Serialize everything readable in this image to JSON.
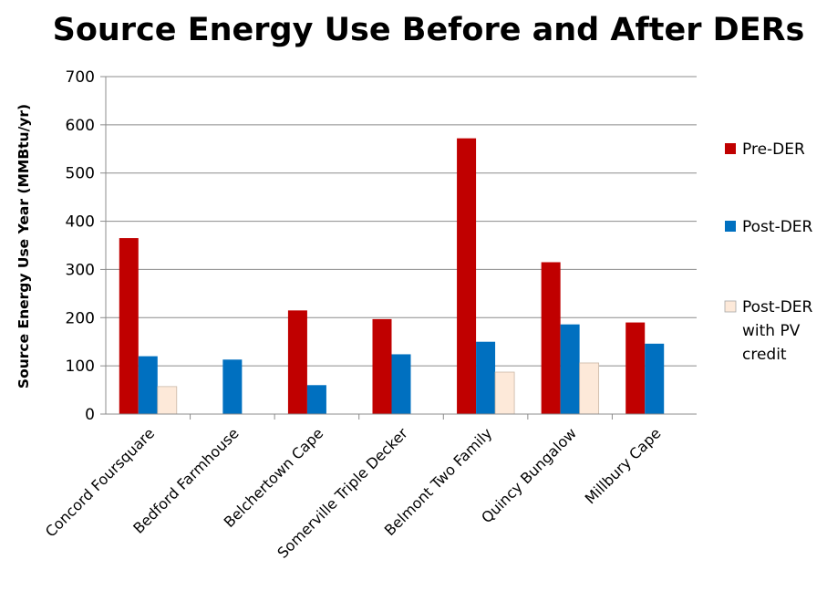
{
  "chart_data": {
    "type": "bar",
    "title": "Source Energy Use Before and After DERs",
    "xlabel": "",
    "ylabel": "Source Energy Use Year (MMBtu/yr)",
    "ylim": [
      0,
      700
    ],
    "yticks": [
      0,
      100,
      200,
      300,
      400,
      500,
      600,
      700
    ],
    "grid": true,
    "legend_position": "right",
    "categories": [
      "Concord Foursquare",
      "Bedford Farmhouse",
      "Belchertown Cape",
      "Somerville Triple Decker",
      "Belmont Two Family",
      "Quincy Bungalow",
      "Millbury Cape"
    ],
    "series": [
      {
        "name": "Pre-DER",
        "legend_lines": [
          "Pre-DER"
        ],
        "color": "#c00000",
        "values": [
          365,
          null,
          215,
          197,
          572,
          315,
          190
        ]
      },
      {
        "name": "Post-DER",
        "legend_lines": [
          "Post-DER"
        ],
        "color": "#0070c0",
        "values": [
          120,
          113,
          60,
          124,
          150,
          186,
          146
        ]
      },
      {
        "name": "Post-DER with PV credit",
        "legend_lines": [
          "Post-DER",
          "with PV",
          "credit"
        ],
        "color": "#fde9d9",
        "values": [
          57,
          null,
          null,
          null,
          87,
          106,
          null
        ]
      }
    ]
  }
}
